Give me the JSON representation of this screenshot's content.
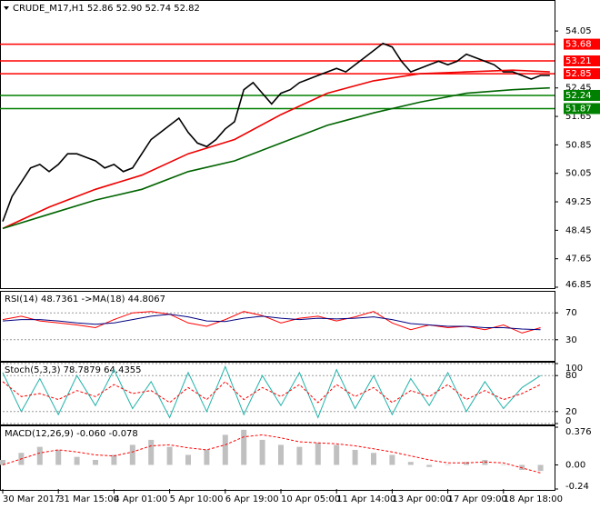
{
  "chart_data": [
    {
      "type": "line",
      "title": "CRUDE_M17,H1  52.86 52.90 52.74 52.82",
      "categories": [
        "30 Mar 2017",
        null,
        null,
        null,
        null,
        null,
        "31 Mar 15:00",
        null,
        null,
        null,
        null,
        null,
        "4 Apr 01:00",
        null,
        null,
        null,
        null,
        null,
        "5 Apr 10:00",
        null,
        null,
        null,
        null,
        null,
        "6 Apr 19:00",
        null,
        null,
        null,
        null,
        null,
        "10 Apr 05:00",
        null,
        null,
        null,
        null,
        null,
        "11 Apr 14:00",
        null,
        null,
        null,
        null,
        null,
        "13 Apr 00:00",
        null,
        null,
        null,
        null,
        null,
        "17 Apr 09:00",
        null,
        null,
        null,
        null,
        null,
        "18 Apr 18:00",
        null,
        null,
        null,
        null,
        null
      ],
      "ylim": [
        46.85,
        54.87
      ],
      "yticks": [
        54.05,
        52.45,
        51.65,
        50.85,
        50.05,
        49.25,
        48.45,
        47.65,
        46.85
      ],
      "levels": [
        {
          "value": 53.68,
          "color": "#ff0000"
        },
        {
          "value": 53.21,
          "color": "#ff0000"
        },
        {
          "value": 52.85,
          "color": "#ff0000"
        },
        {
          "value": 52.24,
          "color": "#008000"
        },
        {
          "value": 51.87,
          "color": "#008000"
        }
      ],
      "series": [
        {
          "color": "#000000",
          "values": [
            48.7,
            49.4,
            49.8,
            50.2,
            50.3,
            50.1,
            50.3,
            50.6,
            50.6,
            50.5,
            50.4,
            50.2,
            50.3,
            50.1,
            50.2,
            50.6,
            51.0,
            51.2,
            51.4,
            51.6,
            51.2,
            50.9,
            50.8,
            51.0,
            51.3,
            51.5,
            52.4,
            52.6,
            52.3,
            52.0,
            52.3,
            52.4,
            52.6,
            52.7,
            52.8,
            52.9,
            53.0,
            52.9,
            53.1,
            53.3,
            53.5,
            53.7,
            53.6,
            53.2,
            52.9,
            53.0,
            53.1,
            53.2,
            53.1,
            53.2,
            53.4,
            53.3,
            53.2,
            53.1,
            52.9,
            52.9,
            52.8,
            52.7,
            52.8,
            52.8
          ]
        },
        {
          "color": "#ee0000",
          "x": [
            0,
            5,
            10,
            15,
            20,
            25,
            30,
            35,
            40,
            45,
            50,
            55,
            59
          ],
          "values": [
            48.5,
            49.1,
            49.6,
            50.0,
            50.6,
            51.0,
            51.7,
            52.3,
            52.65,
            52.85,
            52.9,
            52.95,
            52.9
          ]
        },
        {
          "color": "#006400",
          "x": [
            0,
            5,
            10,
            15,
            20,
            25,
            30,
            35,
            40,
            45,
            50,
            55,
            59
          ],
          "values": [
            48.5,
            48.9,
            49.3,
            49.6,
            50.1,
            50.4,
            50.9,
            51.4,
            51.75,
            52.05,
            52.3,
            52.4,
            52.45
          ]
        }
      ]
    },
    {
      "type": "line",
      "title": "RSI(14) 48.7361 ->MA(18) 44.8067",
      "ylim": [
        0,
        100
      ],
      "yticks": [
        70,
        30
      ],
      "grid": true,
      "series": [
        {
          "color": "#ff0000",
          "x": [
            0,
            2,
            4,
            6,
            8,
            10,
            12,
            14,
            16,
            18,
            20,
            22,
            24,
            26,
            28,
            30,
            32,
            34,
            36,
            38,
            40,
            42,
            44,
            46,
            48,
            50,
            52,
            54,
            56,
            58
          ],
          "values": [
            60,
            65,
            58,
            55,
            52,
            48,
            60,
            70,
            72,
            68,
            55,
            50,
            60,
            72,
            66,
            55,
            62,
            65,
            58,
            64,
            72,
            55,
            45,
            52,
            48,
            50,
            45,
            52,
            40,
            48
          ]
        },
        {
          "color": "#000080",
          "x": [
            0,
            2,
            4,
            6,
            8,
            10,
            12,
            14,
            16,
            18,
            20,
            22,
            24,
            26,
            28,
            30,
            32,
            34,
            36,
            38,
            40,
            42,
            44,
            46,
            48,
            50,
            52,
            54,
            56,
            58
          ],
          "values": [
            58,
            60,
            60,
            58,
            55,
            53,
            55,
            60,
            65,
            68,
            64,
            58,
            57,
            62,
            65,
            62,
            60,
            62,
            61,
            62,
            64,
            60,
            54,
            52,
            50,
            50,
            48,
            48,
            46,
            45
          ]
        }
      ]
    },
    {
      "type": "line",
      "title": "Stoch(5,3,3) 78.7879 64.4355",
      "ylim": [
        0,
        100
      ],
      "yticks": [
        100,
        80,
        20,
        0
      ],
      "grid": true,
      "series": [
        {
          "color": "#20b2aa",
          "x": [
            0,
            2,
            4,
            6,
            8,
            10,
            12,
            14,
            16,
            18,
            20,
            22,
            24,
            26,
            28,
            30,
            32,
            34,
            36,
            38,
            40,
            42,
            44,
            46,
            48,
            50,
            52,
            54,
            56,
            58
          ],
          "values": [
            85,
            20,
            75,
            15,
            80,
            30,
            90,
            25,
            70,
            10,
            85,
            20,
            95,
            15,
            80,
            30,
            85,
            10,
            90,
            25,
            80,
            15,
            75,
            30,
            85,
            20,
            70,
            25,
            60,
            80
          ]
        },
        {
          "color": "#ff0000",
          "dash": true,
          "x": [
            0,
            2,
            4,
            6,
            8,
            10,
            12,
            14,
            16,
            18,
            20,
            22,
            24,
            26,
            28,
            30,
            32,
            34,
            36,
            38,
            40,
            42,
            44,
            46,
            48,
            50,
            52,
            54,
            56,
            58
          ],
          "values": [
            70,
            45,
            50,
            40,
            55,
            45,
            65,
            50,
            55,
            35,
            60,
            40,
            70,
            40,
            60,
            45,
            65,
            35,
            65,
            45,
            60,
            35,
            55,
            45,
            65,
            40,
            55,
            40,
            50,
            65
          ]
        }
      ]
    },
    {
      "type": "line",
      "title": "MACD(12,26,9) -0.060 -0.078",
      "ylim": [
        -0.24,
        0.376
      ],
      "yticks": [
        0.376,
        {
          "value": 0,
          "label": "0.00"
        },
        -0.24
      ],
      "grid": false,
      "series": [
        {
          "color": "#c0c0c0",
          "style": "histogram",
          "x": [
            0,
            2,
            4,
            6,
            8,
            10,
            12,
            14,
            16,
            18,
            20,
            22,
            24,
            26,
            28,
            30,
            32,
            34,
            36,
            38,
            40,
            42,
            44,
            46,
            48,
            50,
            52,
            54,
            56,
            58
          ],
          "values": [
            0.05,
            0.12,
            0.18,
            0.15,
            0.08,
            0.05,
            0.1,
            0.2,
            0.25,
            0.18,
            0.1,
            0.15,
            0.3,
            0.35,
            0.25,
            0.2,
            0.18,
            0.22,
            0.2,
            0.15,
            0.12,
            0.1,
            0.03,
            -0.02,
            0.0,
            0.03,
            0.05,
            0.0,
            -0.05,
            -0.06
          ]
        },
        {
          "color": "#ff0000",
          "dash": true,
          "x": [
            0,
            2,
            4,
            6,
            8,
            10,
            12,
            14,
            16,
            18,
            20,
            22,
            24,
            26,
            28,
            30,
            32,
            34,
            36,
            38,
            40,
            42,
            44,
            46,
            48,
            50,
            52,
            54,
            56,
            58
          ],
          "values": [
            0.0,
            0.06,
            0.12,
            0.15,
            0.13,
            0.1,
            0.09,
            0.13,
            0.19,
            0.2,
            0.17,
            0.15,
            0.2,
            0.28,
            0.3,
            0.27,
            0.23,
            0.22,
            0.21,
            0.19,
            0.16,
            0.13,
            0.09,
            0.05,
            0.02,
            0.02,
            0.03,
            0.02,
            -0.03,
            -0.08
          ]
        }
      ]
    }
  ]
}
